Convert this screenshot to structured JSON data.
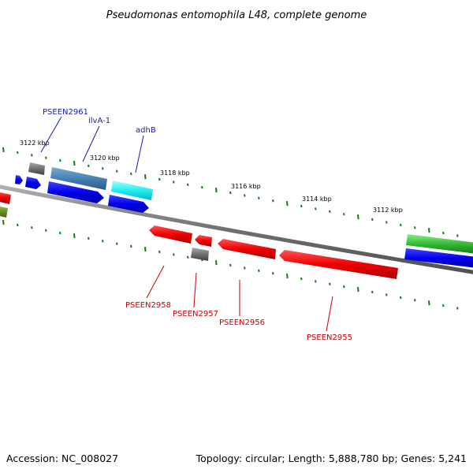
{
  "title": "Pseudomonas entomophila L48, complete genome",
  "footer": {
    "accession": "Accession: NC_008027",
    "summary": "Topology: circular; Length: 5,888,780 bp; Genes: 5,241"
  },
  "tick_labels": [
    "3122 kbp",
    "3120 kbp",
    "3118 kbp",
    "3116 kbp",
    "3114 kbp",
    "3112 kbp"
  ],
  "gene_labels": {
    "forward": [
      "PSEEN2961",
      "ilvA-1",
      "adhB"
    ],
    "reverse": [
      "PSEEN2958",
      "PSEEN2957",
      "PSEEN2956",
      "PSEEN2955"
    ]
  },
  "colors": {
    "backbone": "#808080",
    "tick": "#1a7a1a",
    "gene_red": "#ee1111",
    "gene_blue": "#1111dd",
    "gene_steel": "#4a86c0",
    "gene_cyan": "#22e5ee",
    "gene_gray": "#707070",
    "gene_green": "#33bb33",
    "gene_olive": "#6b8e23"
  }
}
